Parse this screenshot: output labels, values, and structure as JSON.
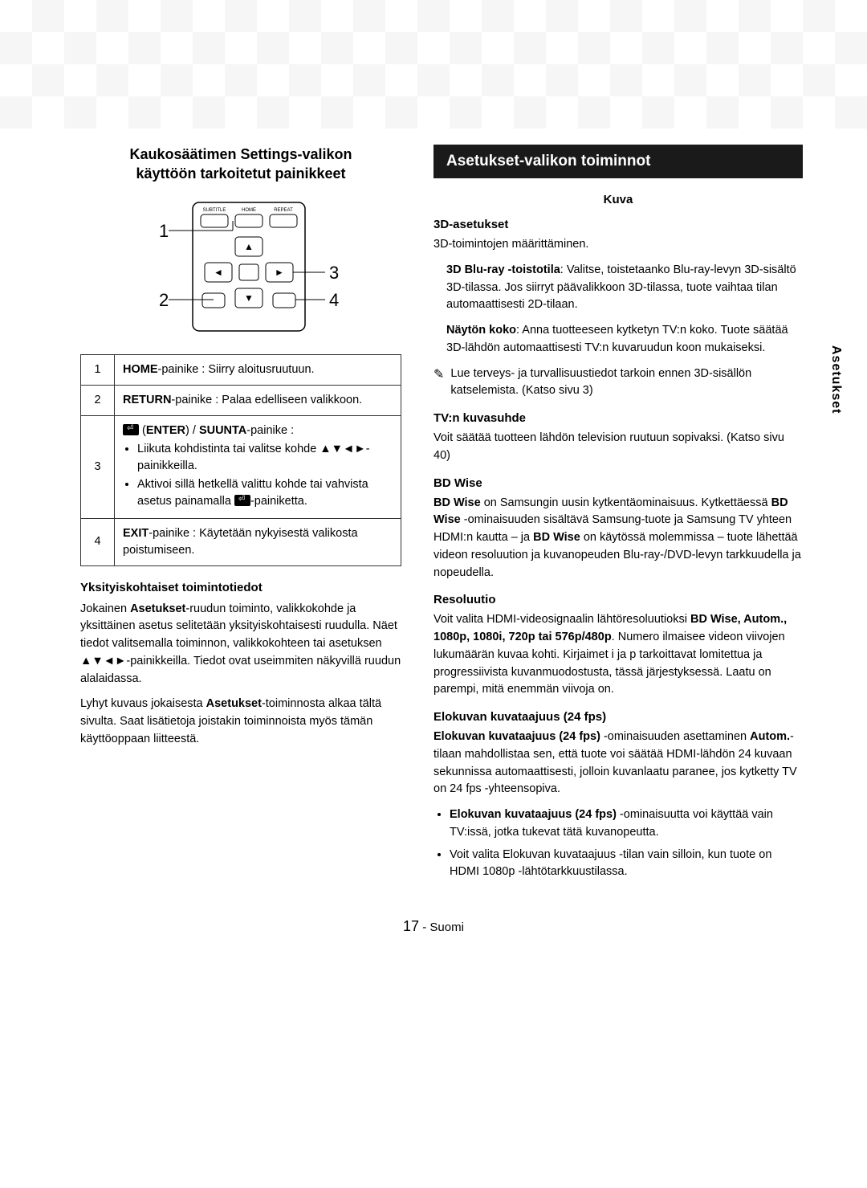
{
  "left": {
    "heading_l1": "Kaukosäätimen Settings-valikon",
    "heading_l2": "käyttöön tarkoitetut painikkeet",
    "remote": {
      "labels": {
        "subtitle": "SUBTITLE",
        "home": "HOME",
        "repeat": "REPEAT"
      },
      "callouts": {
        "c1": "1",
        "c2": "2",
        "c3": "3",
        "c4": "4"
      }
    },
    "table": {
      "r1_num": "1",
      "r1_html": "<b>HOME</b>-painike : Siirry aloitusruutuun.",
      "r2_num": "2",
      "r2_html": "<b>RETURN</b>-painike : Palaa edelliseen valikkoon.",
      "r3_num": "3",
      "r3_line1_pre": " (",
      "r3_line1_enter": "ENTER",
      "r3_line1_post": ") / ",
      "r3_line1_suunta": "SUUNTA",
      "r3_line1_end": "-painike :",
      "r3_b1": "Liikuta kohdistinta tai valitse kohde ▲▼◄►-painikkeilla.",
      "r3_b2_a": "Aktivoi sillä hetkellä valittu kohde tai vahvista asetus painamalla ",
      "r3_b2_b": "-painiketta.",
      "r4_num": "4",
      "r4_html": "<b>EXIT</b>-painike : Käytetään nykyisestä valikosta poistumiseen."
    },
    "sub_heading": "Yksityiskohtaiset toimintotiedot",
    "p1": "Jokainen <b>Asetukset</b>-ruudun toiminto, valikkokohde ja yksittäinen asetus selitetään yksityiskohtaisesti ruudulla. Näet tiedot valitsemalla toiminnon, valikkokohteen tai asetuksen ▲▼◄►-painikkeilla. Tiedot ovat useimmiten näkyvillä ruudun alalaidassa.",
    "p2": "Lyhyt kuvaus jokaisesta <b>Asetukset</b>-toiminnosta alkaa tältä sivulta. Saat lisätietoja joistakin toiminnoista myös tämän käyttöoppaan liitteestä."
  },
  "right": {
    "banner": "Asetukset-valikon toiminnot",
    "kuva_label": "Kuva",
    "s1_name": "3D-asetukset",
    "s1_p1": "3D-toimintojen määrittäminen.",
    "s1_ind1": "<b>3D Blu-ray -toistotila</b>: Valitse, toistetaanko Blu-ray-levyn 3D-sisältö 3D-tilassa. Jos siirryt päävalikkoon 3D-tilassa, tuote vaihtaa tilan automaattisesti 2D-tilaan.",
    "s1_ind2": "<b>Näytön koko</b>: Anna tuotteeseen kytketyn TV:n koko. Tuote säätää 3D-lähdön automaattisesti TV:n kuvaruudun koon mukaiseksi.",
    "s1_note": "Lue terveys- ja turvallisuustiedot tarkoin ennen 3D-sisällön katselemista. (Katso sivu 3)",
    "s2_name": "TV:n kuvasuhde",
    "s2_p": "Voit säätää tuotteen lähdön television ruutuun sopivaksi. (Katso sivu 40)",
    "s3_name": "BD Wise",
    "s3_p": "<b>BD Wise</b> on Samsungin uusin kytkentäominaisuus. Kytkettäessä <b>BD Wise</b> -ominaisuuden sisältävä Samsung-tuote ja Samsung TV yhteen HDMI:n kautta – ja <b>BD Wise</b> on käytössä molemmissa – tuote lähettää videon resoluution ja kuvanopeuden Blu-ray-/DVD-levyn tarkkuudella ja nopeudella.",
    "s4_name": "Resoluutio",
    "s4_p": "Voit valita HDMI-videosignaalin lähtöresoluutioksi <b>BD Wise, Autom., 1080p, 1080i, 720p tai 576p/480p</b>. Numero ilmaisee videon viivojen lukumäärän kuvaa kohti. Kirjaimet i ja p tarkoittavat lomitettua ja progressiivista kuvanmuodostusta, tässä järjestyksessä. Laatu on parempi, mitä enemmän viivoja on.",
    "s5_name": "Elokuvan kuvataajuus (24 fps)",
    "s5_p": "<b>Elokuvan kuvataajuus (24 fps)</b> -ominaisuuden asettaminen <b>Autom.</b>-tilaan mahdollistaa sen, että tuote voi säätää HDMI-lähdön 24 kuvaan sekunnissa automaattisesti, jolloin kuvanlaatu paranee, jos kytketty TV on 24 fps -yhteensopiva.",
    "s5_b1": "<b>Elokuvan kuvataajuus (24 fps)</b> -ominaisuutta voi käyttää vain TV:issä, jotka tukevat tätä kuvanopeutta.",
    "s5_b2": "Voit valita Elokuvan kuvataajuus -tilan vain silloin, kun tuote on HDMI 1080p -lähtötarkkuustilassa."
  },
  "side_tab": "Asetukset",
  "footer": {
    "page": "17",
    "lang": "- Suomi"
  }
}
